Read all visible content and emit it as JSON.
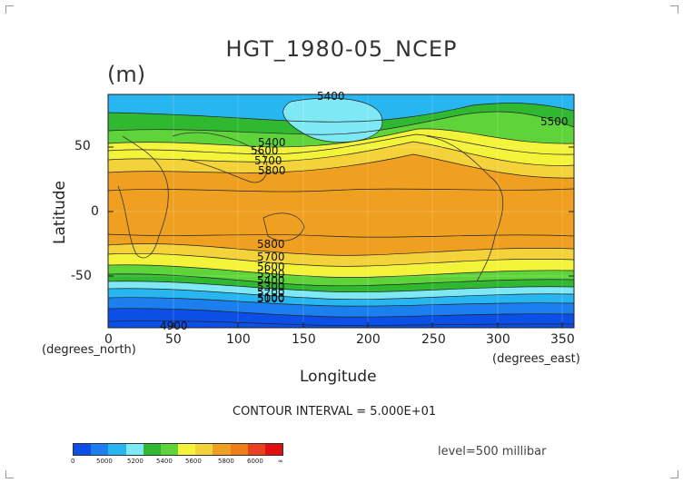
{
  "map": {
    "title": "HGT_1980-05_NCEP",
    "units": "(m)",
    "xlabel": "Longitude",
    "ylabel": "Latitude",
    "x_unit_left": "(degrees_north)",
    "x_unit_right": "(degrees_east)",
    "x_ticks": [
      "0",
      "50",
      "100",
      "150",
      "200",
      "250",
      "300",
      "350"
    ],
    "y_ticks": [
      "50",
      "0",
      "-50"
    ],
    "contour_interval": "CONTOUR INTERVAL = 5.000E+01",
    "level": "level=500 millibar",
    "contour_labels": [
      "5400",
      "5400",
      "5500",
      "5600",
      "5700",
      "5800",
      "5400",
      "5800",
      "5700",
      "5600",
      "5500",
      "5400",
      "5300",
      "5200",
      "5100",
      "5000",
      "4900"
    ]
  },
  "colorbar": {
    "labels": [
      "0",
      "5000",
      "5200",
      "5400",
      "5600",
      "5800",
      "6000",
      "∞"
    ],
    "colors": [
      "#0b4fe6",
      "#1c7ff0",
      "#27b6ef",
      "#7fe8f5",
      "#30b830",
      "#5fd43a",
      "#f3f33a",
      "#f4d23a",
      "#f0a020",
      "#f07c18",
      "#e84020",
      "#e01010"
    ]
  }
}
